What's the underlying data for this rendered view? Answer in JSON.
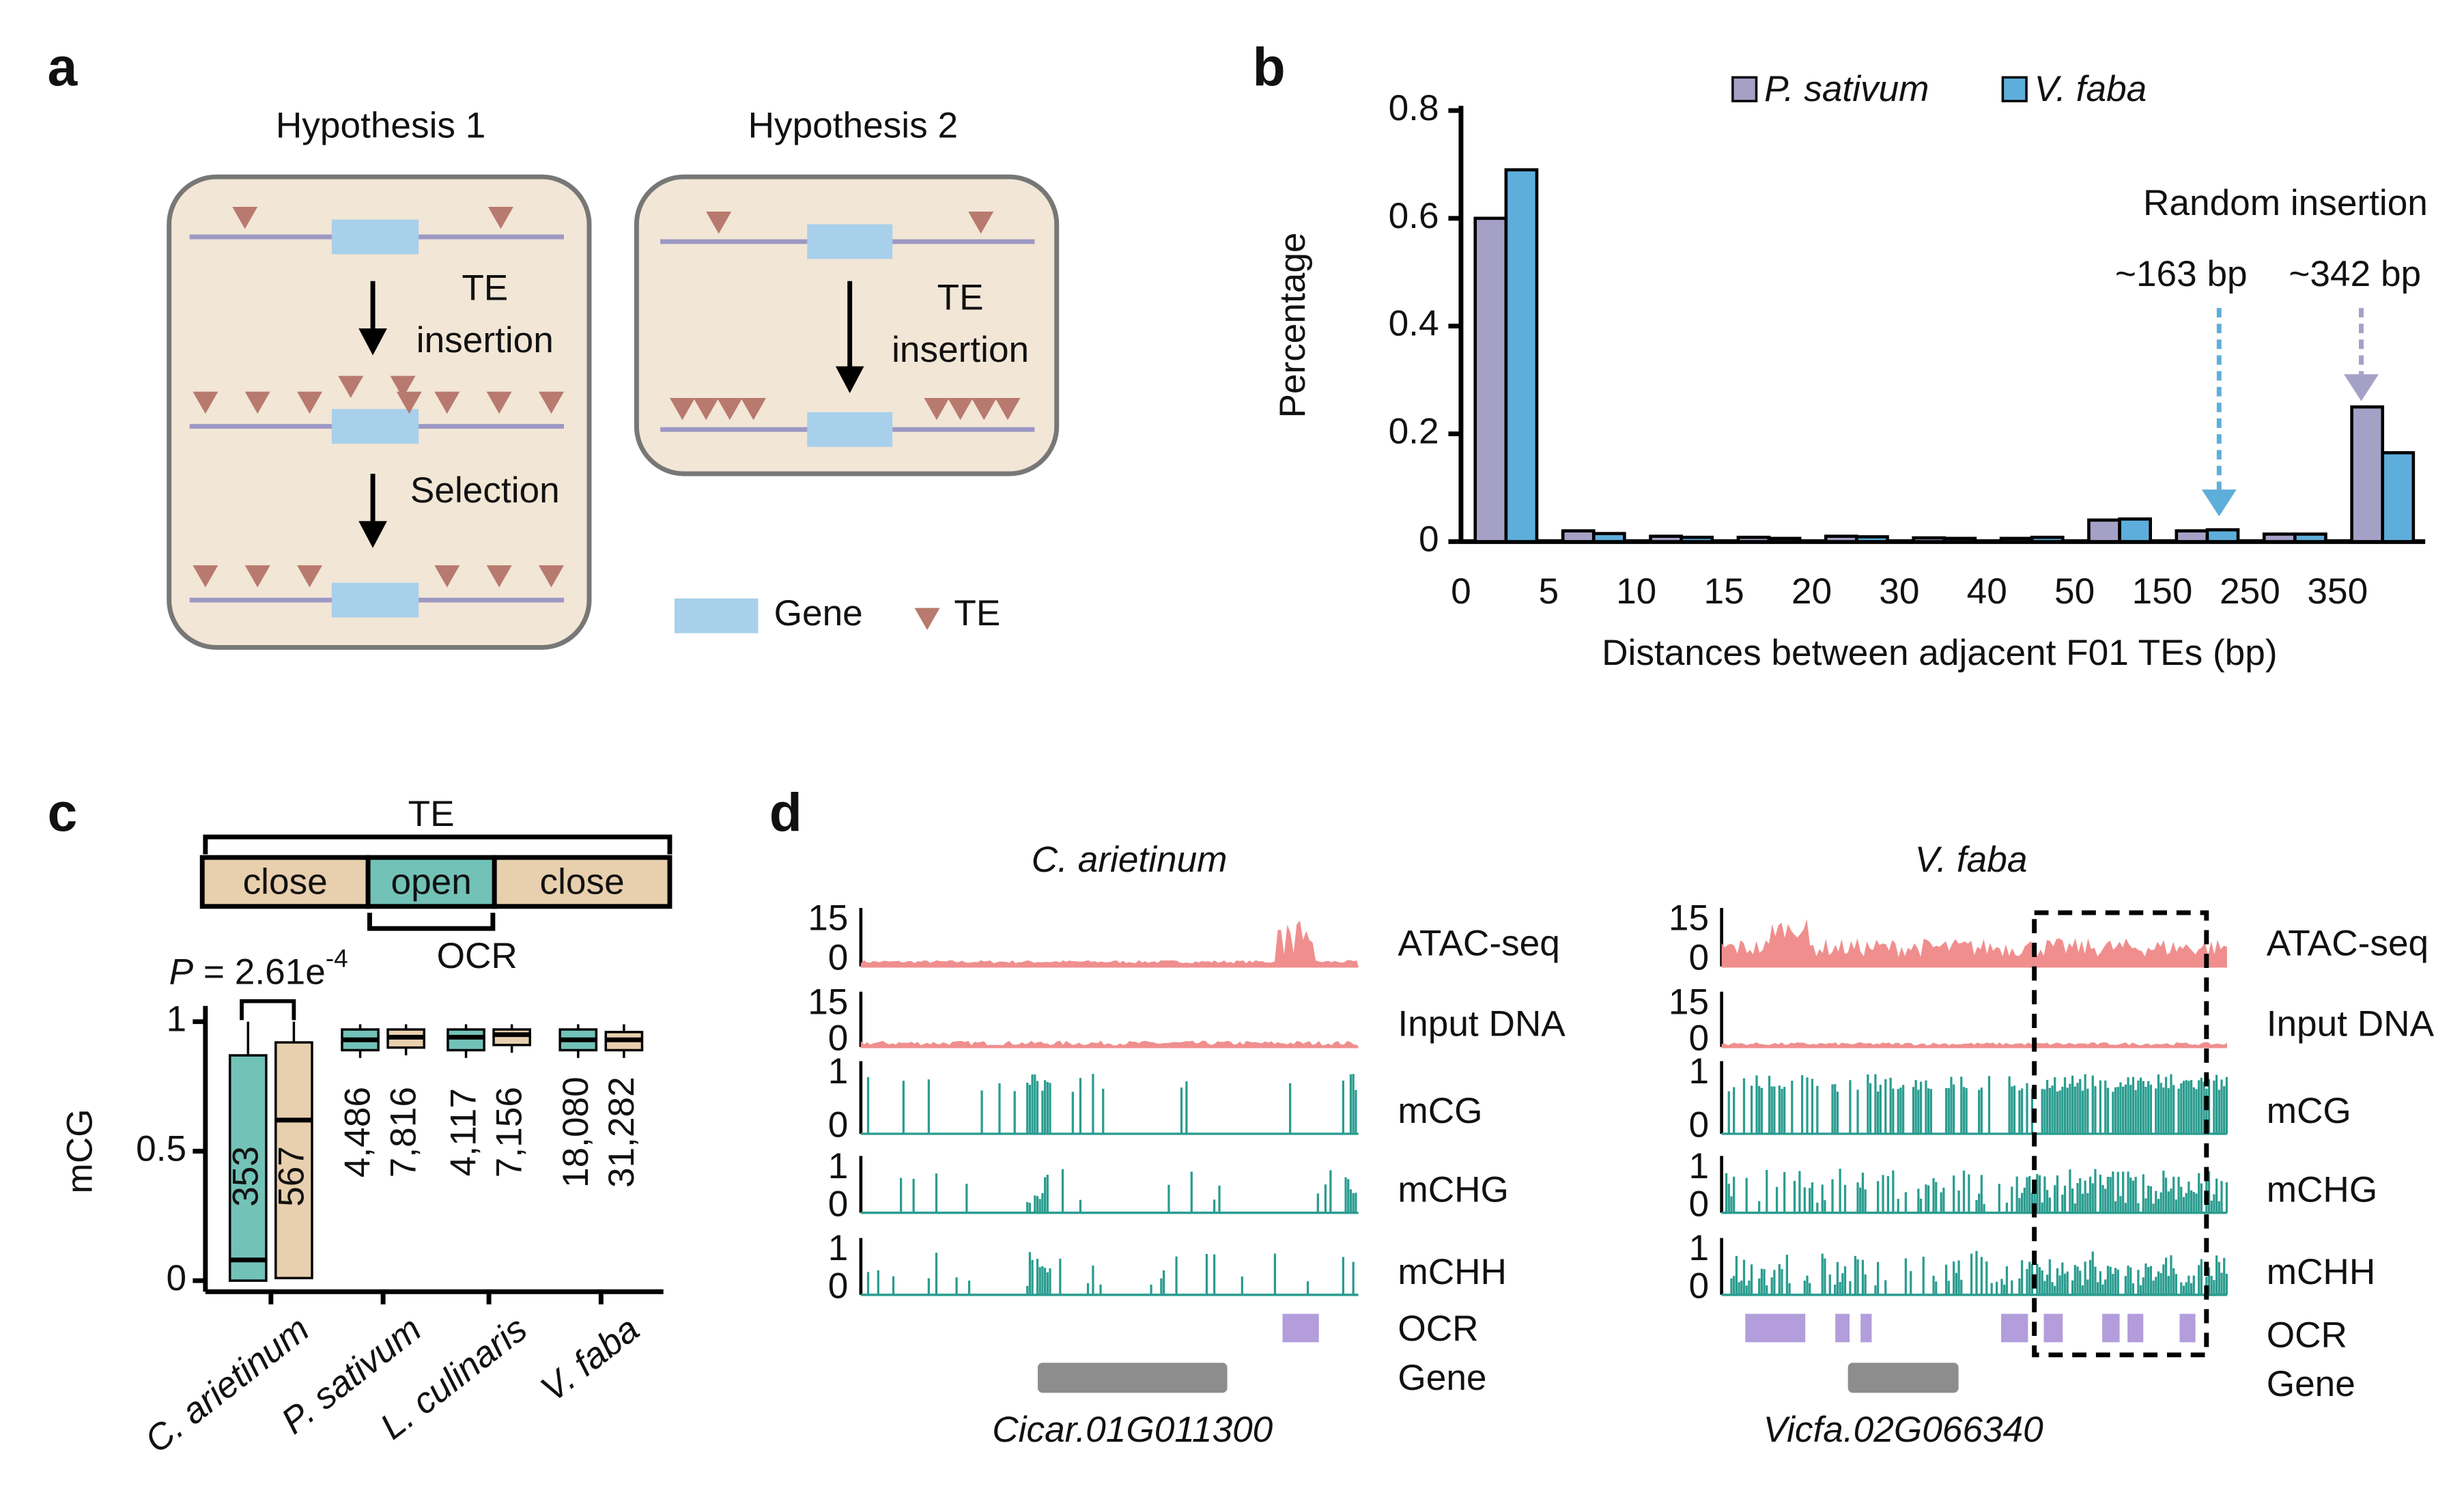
{
  "panel_labels": [
    "a",
    "b",
    "c",
    "d"
  ],
  "diagram": {
    "hypothesis1": "Hypothesis 1",
    "hypothesis2": "Hypothesis 2",
    "te": "TE",
    "insertion": "insertion",
    "selection": "Selection",
    "legend_gene": "Gene",
    "legend_te": "TE"
  },
  "chart_data": [
    {
      "type": "bar",
      "xlabel": "Distances between adjacent F01 TEs (bp)",
      "ylabel": "Percentage",
      "categories": [
        "0",
        "5",
        "10",
        "15",
        "20",
        "30",
        "40",
        "50",
        "150",
        "250",
        "350"
      ],
      "series": [
        {
          "name": "P. sativum",
          "color": "#a5a1c6",
          "values": [
            0.6,
            0.02,
            0.01,
            0.008,
            0.01,
            0.007,
            0.006,
            0.04,
            0.02,
            0.014,
            0.25
          ]
        },
        {
          "name": "V. faba",
          "color": "#5eaedb",
          "values": [
            0.69,
            0.015,
            0.008,
            0.006,
            0.009,
            0.006,
            0.008,
            0.042,
            0.022,
            0.014,
            0.165
          ]
        }
      ],
      "ylim": [
        0,
        0.8
      ],
      "yticks": [
        0,
        0.2,
        0.4,
        0.6,
        0.8
      ],
      "annotations": {
        "title": "Random insertion",
        "left": "~163 bp",
        "right": "~342 bp"
      }
    },
    {
      "type": "box",
      "ylabel": "mCG",
      "ylim": [
        0,
        1
      ],
      "yticks": [
        0,
        0.5,
        1
      ],
      "categories": [
        "C. arietinum",
        "P. sativum",
        "L. culinaris",
        "V. faba"
      ],
      "series": [
        {
          "name": "open",
          "color": "#72c2b8",
          "stats": [
            [
              0,
              0,
              0.08,
              0.87,
              1
            ],
            [
              0.86,
              0.89,
              0.93,
              0.97,
              0.99
            ],
            [
              0.86,
              0.89,
              0.94,
              0.97,
              0.99
            ],
            [
              0.86,
              0.89,
              0.93,
              0.97,
              0.99
            ]
          ],
          "n_labels": [
            "353",
            "4,486",
            "4,117",
            "18,080"
          ]
        },
        {
          "name": "close",
          "color": "#e8cfad",
          "stats": [
            [
              0.01,
              0.01,
              0.62,
              0.92,
              1
            ],
            [
              0.87,
              0.9,
              0.94,
              0.97,
              0.99
            ],
            [
              0.88,
              0.91,
              0.95,
              0.97,
              0.99
            ],
            [
              0.86,
              0.89,
              0.93,
              0.96,
              0.99
            ]
          ],
          "n_labels": [
            "567",
            "7,816",
            "7,156",
            "31,282"
          ]
        }
      ],
      "p_value": {
        "prefix": "P",
        "text": " = 2.61e",
        "exponent": "-4"
      },
      "schematic": {
        "te": "TE",
        "ocr": "OCR"
      }
    }
  ],
  "tracks": {
    "titles": [
      "C. arietinum",
      "V. faba"
    ],
    "labels": [
      "ATAC-seq",
      "Input DNA",
      "mCG",
      "mCHG",
      "mCHH",
      "OCR",
      "Gene"
    ],
    "signal_ticks": [
      0,
      15
    ],
    "methylation_ticks": [
      0,
      1
    ],
    "genes": [
      "Cicar.01G011300",
      "Vicfa.02G066340"
    ]
  }
}
